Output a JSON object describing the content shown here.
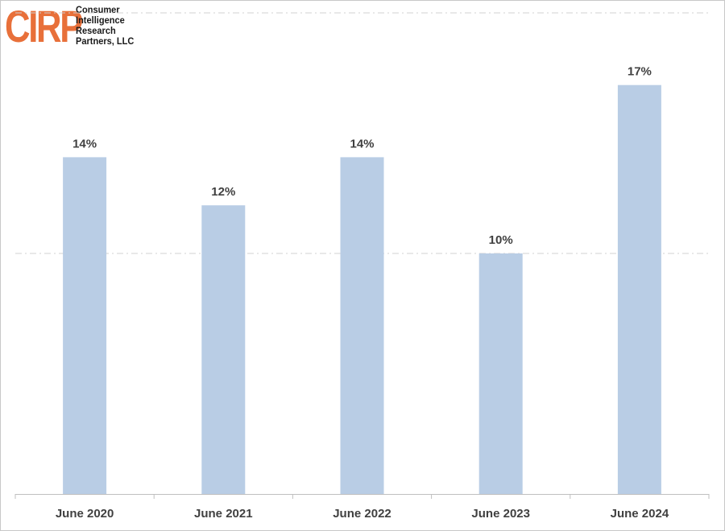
{
  "logo": {
    "mark": "CIRP",
    "lines": [
      "Consumer",
      "Intelligence",
      "Research",
      "Partners, LLC"
    ]
  },
  "colors": {
    "bar": "#b9cde5",
    "label": "#404040",
    "logo_mark": "#e8703a",
    "gridline": "#d0d0d0",
    "axis": "#bfbfbf"
  },
  "chart_data": {
    "type": "bar",
    "categories": [
      "June 2020",
      "June 2021",
      "June 2022",
      "June 2023",
      "June 2024"
    ],
    "values": [
      14,
      12,
      14,
      10,
      17
    ],
    "data_labels": [
      "14%",
      "12%",
      "14%",
      "10%",
      "17%"
    ],
    "unit": "%",
    "ylim": [
      0,
      20
    ],
    "gridlines": [
      10,
      20
    ],
    "grid": true,
    "legend": "none",
    "title": "",
    "xlabel": "",
    "ylabel": ""
  }
}
